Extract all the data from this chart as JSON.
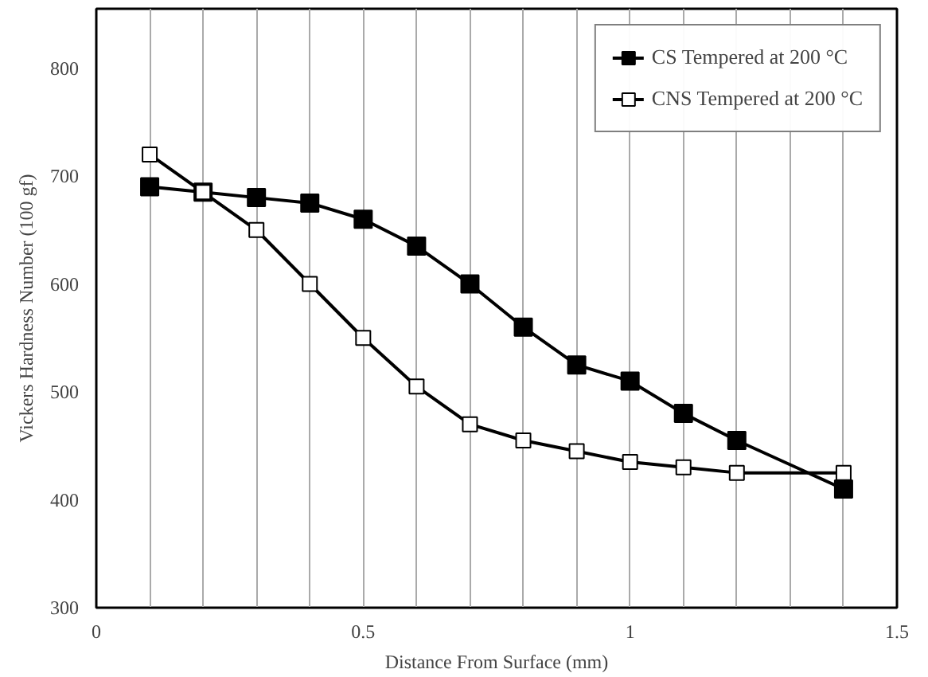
{
  "chart_data": {
    "type": "line",
    "xlabel": "Distance From Surface (mm)",
    "ylabel": "Vickers Hardness Number (100 gf)",
    "xlim": [
      0,
      1.5
    ],
    "ylim": [
      300,
      855
    ],
    "xticks": [
      0,
      {
        "value": 0.1,
        "label": null
      },
      {
        "value": 0.2,
        "label": null
      },
      {
        "value": 0.3,
        "label": null
      },
      {
        "value": 0.4,
        "label": null
      },
      0.5,
      {
        "value": 0.6,
        "label": null
      },
      {
        "value": 0.7,
        "label": null
      },
      {
        "value": 0.8,
        "label": null
      },
      {
        "value": 0.9,
        "label": null
      },
      1,
      {
        "value": 1.1,
        "label": null
      },
      {
        "value": 1.2,
        "label": null
      },
      {
        "value": 1.3,
        "label": null
      },
      {
        "value": 1.4,
        "label": null
      },
      1.5
    ],
    "yticks": [
      300,
      400,
      500,
      600,
      700,
      800
    ],
    "grid": "x",
    "legend": "top right",
    "marker": "square",
    "line_style": "solid",
    "series": [
      {
        "name": "CS Tempered at 200 °C",
        "color": "#000000",
        "x": [
          0.1,
          0.2,
          0.3,
          0.4,
          0.5,
          0.6,
          0.7,
          0.8,
          0.9,
          1.0,
          1.1,
          1.2,
          1.4
        ],
        "values": [
          690,
          685,
          680,
          675,
          660,
          635,
          600,
          560,
          525,
          510,
          480,
          455,
          410
        ]
      },
      {
        "name": "CNS Tempered at 200 °C",
        "color": "#ffffff",
        "x": [
          0.1,
          0.2,
          0.3,
          0.4,
          0.5,
          0.6,
          0.7,
          0.8,
          0.9,
          1.0,
          1.1,
          1.2,
          1.4
        ],
        "values": [
          720,
          685,
          650,
          600,
          550,
          505,
          470,
          455,
          445,
          435,
          430,
          425,
          425
        ]
      }
    ]
  }
}
